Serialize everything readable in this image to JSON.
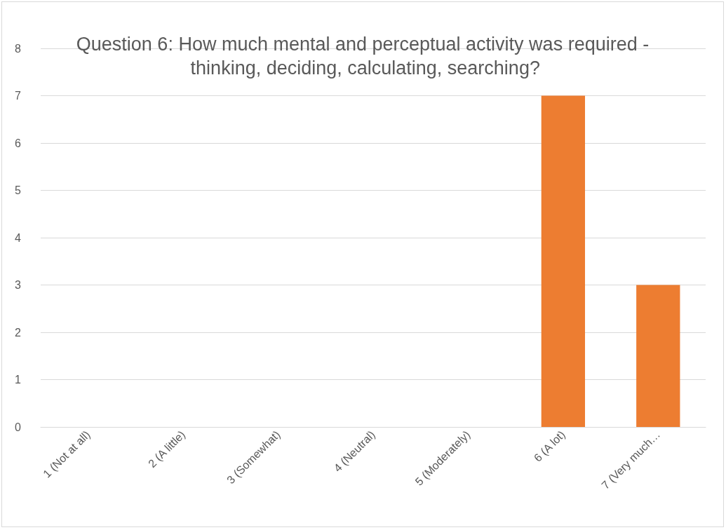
{
  "chart_data": {
    "type": "bar",
    "title": "Question 6: How much mental and perceptual activity was required - thinking, deciding, calculating, searching?",
    "categories": [
      "1 (Not at all)",
      "2 (A little)",
      "3 (Somewhat)",
      "4 (Neutral)",
      "5 (Moderately)",
      "6 (A lot)",
      "7 (Very much…"
    ],
    "values": [
      0,
      0,
      0,
      0,
      0,
      7,
      3
    ],
    "color": "#ed7d31",
    "ylim": [
      0,
      8
    ],
    "yticks": [
      0,
      1,
      2,
      3,
      4,
      5,
      6,
      7,
      8
    ],
    "grid": "y"
  }
}
